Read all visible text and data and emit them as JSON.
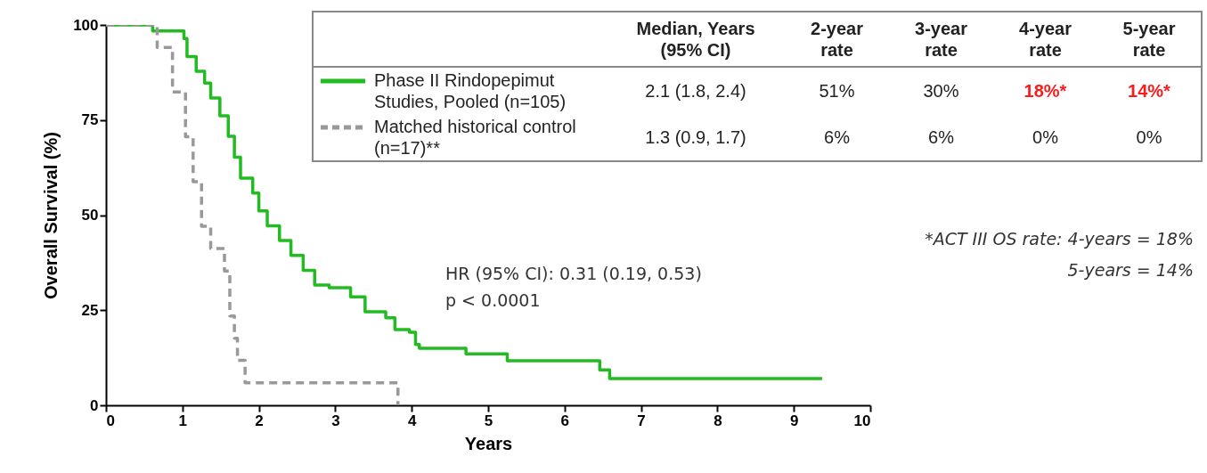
{
  "chart_data": {
    "type": "step",
    "xlabel": "Years",
    "ylabel": "Overall Survival (%)",
    "xlim": [
      0,
      10
    ],
    "xticks": [
      0,
      1,
      2,
      3,
      4,
      5,
      6,
      7,
      8,
      9,
      10
    ],
    "ylim": [
      0,
      100
    ],
    "yticks": [
      0,
      25,
      50,
      75,
      100
    ],
    "grid": false,
    "legend": "top",
    "series": [
      {
        "name": "Phase II Rindopepimut Studies, Pooled (n=105)",
        "color": "#22bb22",
        "line_style": "solid",
        "x": [
          0,
          0.61,
          1.02,
          1.06,
          1.18,
          1.29,
          1.37,
          1.49,
          1.6,
          1.68,
          1.76,
          1.92,
          2.0,
          2.11,
          2.27,
          2.42,
          2.58,
          2.73,
          2.92,
          3.2,
          3.39,
          3.66,
          3.78,
          3.97,
          4.05,
          4.1,
          4.71,
          5.25,
          6.46,
          6.59,
          9.37
        ],
        "values": [
          100,
          98.4,
          96.4,
          91.7,
          87.8,
          84.7,
          80.8,
          76.1,
          70.7,
          65.2,
          59.7,
          55.8,
          51.1,
          47.2,
          43.3,
          39.4,
          35.5,
          31.6,
          30.9,
          28.5,
          24.6,
          23,
          19.9,
          19.2,
          16,
          15,
          13.5,
          11.7,
          9.3,
          7,
          7
        ]
      },
      {
        "name": "Matched historical control (n=17)**",
        "color": "#999999",
        "line_style": "dashed",
        "x": [
          0,
          0.67,
          0.87,
          1.04,
          1.14,
          1.25,
          1.37,
          1.55,
          1.62,
          1.68,
          1.72,
          1.82,
          3.82
        ],
        "values": [
          100,
          94.1,
          82.4,
          70.6,
          58.8,
          47.1,
          41.2,
          35.3,
          23.5,
          17.6,
          11.8,
          5.9,
          0
        ]
      }
    ],
    "annotations": [
      "Median, Years (95% CI)",
      "2-year rate",
      "3-year rate",
      "4-year rate",
      "5-year rate",
      "2.1 (1.8, 2.4)",
      "51%",
      "30%",
      "18%*",
      "14%*",
      "1.3 (0.9, 1.7)",
      "6%",
      "6%",
      "0%",
      "0%",
      "HR (95% CI): 0.31 (0.19, 0.53)",
      "p < 0.0001",
      "*ACT III OS rate: 4-years = 18%",
      "5-years = 14%"
    ]
  }
}
